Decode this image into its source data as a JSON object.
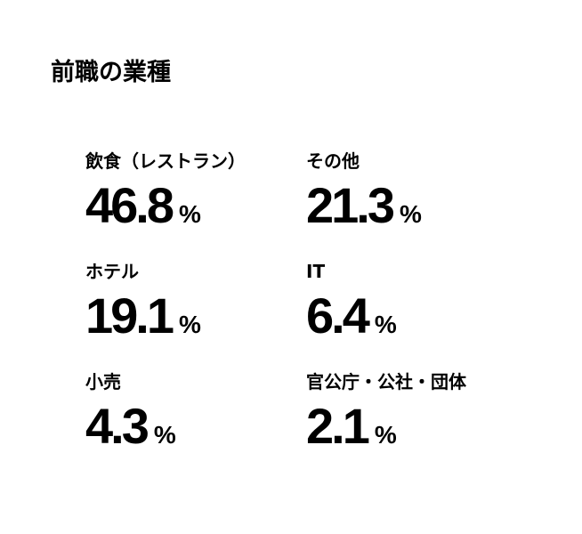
{
  "title": "前職の業種",
  "unit": "%",
  "stats": [
    {
      "label": "飲食（レストラン）",
      "value": "46.8"
    },
    {
      "label": "その他",
      "value": "21.3"
    },
    {
      "label": "ホテル",
      "value": "19.1"
    },
    {
      "label": "IT",
      "value": "6.4"
    },
    {
      "label": "小売",
      "value": "4.3"
    },
    {
      "label": "官公庁・公社・団体",
      "value": "2.1"
    }
  ]
}
